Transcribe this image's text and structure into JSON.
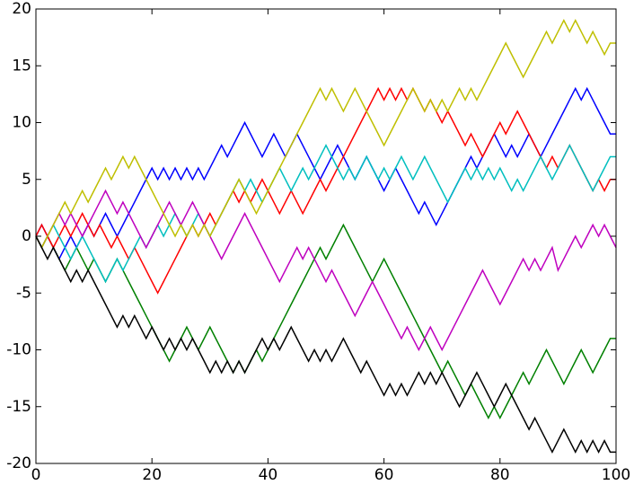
{
  "chart_data": {
    "type": "line",
    "x": [
      0,
      1,
      2,
      3,
      4,
      5,
      6,
      7,
      8,
      9,
      10,
      11,
      12,
      13,
      14,
      15,
      16,
      17,
      18,
      19,
      20,
      21,
      22,
      23,
      24,
      25,
      26,
      27,
      28,
      29,
      30,
      31,
      32,
      33,
      34,
      35,
      36,
      37,
      38,
      39,
      40,
      41,
      42,
      43,
      44,
      45,
      46,
      47,
      48,
      49,
      50,
      51,
      52,
      53,
      54,
      55,
      56,
      57,
      58,
      59,
      60,
      61,
      62,
      63,
      64,
      65,
      66,
      67,
      68,
      69,
      70,
      71,
      72,
      73,
      74,
      75,
      76,
      77,
      78,
      79,
      80,
      81,
      82,
      83,
      84,
      85,
      86,
      87,
      88,
      89,
      90,
      91,
      92,
      93,
      94,
      95,
      96,
      97,
      98,
      99,
      100
    ],
    "xlim": [
      0,
      100
    ],
    "xticks": [
      0,
      20,
      40,
      60,
      80,
      100
    ],
    "ylim": [
      -20,
      20
    ],
    "yticks": [
      -20,
      -15,
      -10,
      -5,
      0,
      5,
      10,
      15,
      20
    ],
    "series": [
      {
        "color": "#0000ff",
        "values": [
          0,
          1,
          0,
          -1,
          -2,
          -1,
          0,
          -1,
          0,
          1,
          0,
          1,
          2,
          1,
          0,
          1,
          2,
          3,
          4,
          5,
          6,
          5,
          6,
          5,
          6,
          5,
          6,
          5,
          6,
          5,
          6,
          7,
          8,
          7,
          8,
          9,
          10,
          9,
          8,
          7,
          8,
          9,
          8,
          7,
          8,
          9,
          8,
          7,
          6,
          5,
          6,
          7,
          8,
          7,
          6,
          5,
          6,
          7,
          6,
          5,
          4,
          5,
          6,
          5,
          4,
          3,
          2,
          3,
          2,
          1,
          2,
          3,
          4,
          5,
          6,
          7,
          6,
          7,
          8,
          9,
          8,
          7,
          8,
          7,
          8,
          9,
          8,
          7,
          8,
          9,
          10,
          11,
          12,
          13,
          12,
          13,
          12,
          11,
          10,
          9,
          9
        ]
      },
      {
        "color": "#008000",
        "values": [
          0,
          -1,
          0,
          -1,
          -2,
          -3,
          -2,
          -1,
          -2,
          -3,
          -2,
          -3,
          -4,
          -3,
          -2,
          -3,
          -4,
          -5,
          -6,
          -7,
          -8,
          -9,
          -10,
          -11,
          -10,
          -9,
          -8,
          -9,
          -10,
          -9,
          -8,
          -9,
          -10,
          -11,
          -12,
          -11,
          -12,
          -11,
          -10,
          -11,
          -10,
          -9,
          -8,
          -7,
          -6,
          -5,
          -4,
          -3,
          -2,
          -1,
          -2,
          -1,
          0,
          1,
          0,
          -1,
          -2,
          -3,
          -4,
          -3,
          -2,
          -3,
          -4,
          -5,
          -6,
          -7,
          -8,
          -9,
          -10,
          -11,
          -12,
          -11,
          -12,
          -13,
          -14,
          -13,
          -14,
          -15,
          -16,
          -15,
          -16,
          -15,
          -14,
          -13,
          -12,
          -13,
          -12,
          -11,
          -10,
          -11,
          -12,
          -13,
          -12,
          -11,
          -10,
          -11,
          -12,
          -11,
          -10,
          -9,
          -9
        ]
      },
      {
        "color": "#ff0000",
        "values": [
          0,
          1,
          0,
          -1,
          0,
          1,
          0,
          1,
          2,
          1,
          0,
          1,
          0,
          -1,
          0,
          -1,
          -2,
          -1,
          -2,
          -3,
          -4,
          -5,
          -4,
          -3,
          -2,
          -1,
          0,
          1,
          0,
          1,
          2,
          1,
          2,
          3,
          4,
          3,
          4,
          3,
          4,
          5,
          4,
          3,
          2,
          3,
          4,
          3,
          2,
          3,
          4,
          5,
          4,
          5,
          6,
          7,
          8,
          9,
          10,
          11,
          12,
          13,
          12,
          13,
          12,
          13,
          12,
          13,
          12,
          11,
          12,
          11,
          10,
          11,
          10,
          9,
          8,
          9,
          8,
          7,
          8,
          9,
          10,
          9,
          10,
          11,
          10,
          9,
          8,
          7,
          6,
          7,
          6,
          7,
          8,
          7,
          6,
          5,
          4,
          5,
          4,
          5,
          5
        ]
      },
      {
        "color": "#00bfbf",
        "values": [
          0,
          -1,
          0,
          1,
          0,
          -1,
          -2,
          -1,
          0,
          -1,
          -2,
          -3,
          -4,
          -3,
          -2,
          -3,
          -2,
          -1,
          0,
          -1,
          0,
          1,
          0,
          1,
          2,
          1,
          0,
          1,
          2,
          1,
          0,
          1,
          2,
          3,
          4,
          5,
          4,
          5,
          4,
          3,
          4,
          5,
          6,
          5,
          4,
          5,
          6,
          5,
          6,
          7,
          8,
          7,
          6,
          5,
          6,
          5,
          6,
          7,
          6,
          5,
          6,
          5,
          6,
          7,
          6,
          5,
          6,
          7,
          6,
          5,
          4,
          3,
          4,
          5,
          6,
          5,
          6,
          5,
          6,
          5,
          6,
          5,
          4,
          5,
          4,
          5,
          6,
          7,
          6,
          5,
          6,
          7,
          8,
          7,
          6,
          5,
          4,
          5,
          6,
          7,
          7
        ]
      },
      {
        "color": "#bf00bf",
        "values": [
          0,
          -1,
          0,
          1,
          2,
          1,
          2,
          1,
          0,
          1,
          2,
          3,
          4,
          3,
          2,
          3,
          2,
          1,
          0,
          -1,
          0,
          1,
          2,
          3,
          2,
          1,
          2,
          3,
          2,
          1,
          0,
          -1,
          -2,
          -1,
          0,
          1,
          2,
          1,
          0,
          -1,
          -2,
          -3,
          -4,
          -3,
          -2,
          -1,
          -2,
          -1,
          -2,
          -3,
          -4,
          -3,
          -4,
          -5,
          -6,
          -7,
          -6,
          -5,
          -4,
          -5,
          -6,
          -7,
          -8,
          -9,
          -8,
          -9,
          -10,
          -9,
          -8,
          -9,
          -10,
          -9,
          -8,
          -7,
          -6,
          -5,
          -4,
          -3,
          -4,
          -5,
          -6,
          -5,
          -4,
          -3,
          -2,
          -3,
          -2,
          -3,
          -2,
          -1,
          -3,
          -2,
          -1,
          0,
          -1,
          0,
          1,
          0,
          1,
          0,
          -1
        ]
      },
      {
        "color": "#bfbf00",
        "values": [
          0,
          -1,
          0,
          1,
          2,
          3,
          2,
          3,
          4,
          3,
          4,
          5,
          6,
          5,
          6,
          7,
          6,
          7,
          6,
          5,
          4,
          3,
          2,
          1,
          0,
          1,
          0,
          1,
          0,
          1,
          0,
          1,
          2,
          3,
          4,
          5,
          4,
          3,
          2,
          3,
          4,
          5,
          6,
          7,
          8,
          9,
          10,
          11,
          12,
          13,
          12,
          13,
          12,
          11,
          12,
          13,
          12,
          11,
          10,
          9,
          8,
          9,
          10,
          11,
          12,
          13,
          12,
          11,
          12,
          11,
          12,
          11,
          12,
          13,
          12,
          13,
          12,
          13,
          14,
          15,
          16,
          17,
          16,
          15,
          14,
          15,
          16,
          17,
          18,
          17,
          18,
          19,
          18,
          19,
          18,
          17,
          18,
          17,
          16,
          17,
          17
        ]
      },
      {
        "color": "#000000",
        "values": [
          0,
          -1,
          -2,
          -1,
          -2,
          -3,
          -4,
          -3,
          -4,
          -3,
          -4,
          -5,
          -6,
          -7,
          -8,
          -7,
          -8,
          -7,
          -8,
          -9,
          -8,
          -9,
          -10,
          -9,
          -10,
          -9,
          -10,
          -9,
          -10,
          -11,
          -12,
          -11,
          -12,
          -11,
          -12,
          -11,
          -12,
          -11,
          -10,
          -9,
          -10,
          -9,
          -10,
          -9,
          -8,
          -9,
          -10,
          -11,
          -10,
          -11,
          -10,
          -11,
          -10,
          -9,
          -10,
          -11,
          -12,
          -11,
          -12,
          -13,
          -14,
          -13,
          -14,
          -13,
          -14,
          -13,
          -12,
          -13,
          -12,
          -13,
          -12,
          -13,
          -14,
          -15,
          -14,
          -13,
          -12,
          -13,
          -14,
          -15,
          -14,
          -13,
          -14,
          -15,
          -16,
          -17,
          -16,
          -17,
          -18,
          -19,
          -18,
          -17,
          -18,
          -19,
          -18,
          -19,
          -18,
          -19,
          -18,
          -19,
          -19
        ]
      }
    ]
  }
}
